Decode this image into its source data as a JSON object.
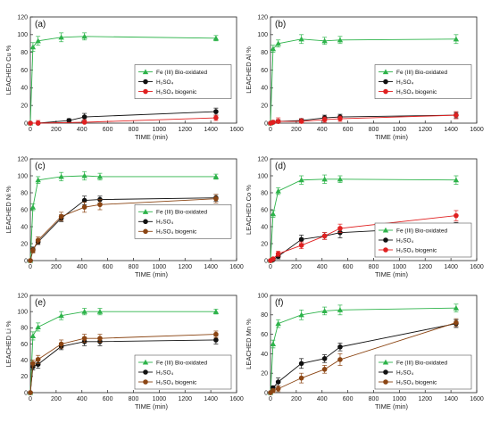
{
  "chart_data": [
    {
      "type": "line",
      "panel_label": "(a)",
      "xlabel": "TIME (min)",
      "ylabel": "LEACHED Cu %",
      "xlim": [
        0,
        1600
      ],
      "ylim": [
        0,
        120
      ],
      "xticks": [
        0,
        200,
        400,
        600,
        800,
        1000,
        1200,
        1400,
        1600
      ],
      "yticks": [
        0,
        20,
        40,
        60,
        80,
        100,
        120
      ],
      "legend_placement": "middle-right",
      "series": [
        {
          "name": "Fe (III) Bio-oxidated",
          "color": "#2db34a",
          "marker": "triangle",
          "x": [
            0,
            20,
            60,
            240,
            420,
            1440
          ],
          "y": [
            0,
            86,
            93,
            97,
            98,
            96
          ],
          "err": [
            0,
            5,
            5,
            5,
            4,
            3
          ]
        },
        {
          "name": "H₂SO₄",
          "color": "#111111",
          "marker": "circle",
          "x": [
            0,
            60,
            300,
            420,
            1440
          ],
          "y": [
            0,
            0,
            3,
            7,
            13
          ],
          "err": [
            0,
            0,
            2,
            4,
            4
          ]
        },
        {
          "name": "H₂SO₄ biogenic",
          "color": "#e02020",
          "marker": "circle",
          "x": [
            0,
            60,
            420,
            1440
          ],
          "y": [
            0,
            0,
            1,
            6
          ],
          "err": [
            0,
            3,
            3,
            3
          ]
        }
      ]
    },
    {
      "type": "line",
      "panel_label": "(b)",
      "xlabel": "TIME (min)",
      "ylabel": "LEACHED Al %",
      "xlim": [
        0,
        1600
      ],
      "ylim": [
        0,
        120
      ],
      "xticks": [
        0,
        200,
        400,
        600,
        800,
        1000,
        1200,
        1400,
        1600
      ],
      "yticks": [
        0,
        20,
        40,
        60,
        80,
        100,
        120
      ],
      "legend_placement": "middle-right",
      "series": [
        {
          "name": "Fe (III) Bio-oxidated",
          "color": "#2db34a",
          "marker": "triangle",
          "x": [
            0,
            20,
            60,
            240,
            420,
            540,
            1440
          ],
          "y": [
            0,
            84,
            90,
            95,
            93,
            94,
            95
          ],
          "err": [
            0,
            4,
            4,
            5,
            4,
            4,
            5
          ]
        },
        {
          "name": "H₂SO₄",
          "color": "#111111",
          "marker": "circle",
          "x": [
            0,
            20,
            60,
            240,
            420,
            540,
            1440
          ],
          "y": [
            0,
            1,
            2,
            3,
            6,
            7,
            9
          ],
          "err": [
            0,
            1,
            2,
            2,
            3,
            3,
            3
          ]
        },
        {
          "name": "H₂SO₄ biogenic",
          "color": "#e02020",
          "marker": "circle",
          "x": [
            0,
            20,
            60,
            240,
            420,
            540,
            1440
          ],
          "y": [
            0,
            1,
            2,
            2,
            4,
            5,
            9
          ],
          "err": [
            0,
            2,
            4,
            3,
            3,
            3,
            4
          ]
        }
      ]
    },
    {
      "type": "line",
      "panel_label": "(c)",
      "xlabel": "TIME (min)",
      "ylabel": "LEACHED Ni %",
      "xlim": [
        0,
        1600
      ],
      "ylim": [
        0,
        120
      ],
      "xticks": [
        0,
        200,
        400,
        600,
        800,
        1000,
        1200,
        1400,
        1600
      ],
      "yticks": [
        0,
        20,
        40,
        60,
        80,
        100,
        120
      ],
      "legend_placement": "middle-right",
      "series": [
        {
          "name": "Fe (III) Bio-oxidated",
          "color": "#2db34a",
          "marker": "triangle",
          "x": [
            0,
            20,
            60,
            240,
            420,
            540,
            1440
          ],
          "y": [
            0,
            63,
            95,
            99,
            100,
            99,
            99
          ],
          "err": [
            0,
            4,
            4,
            5,
            5,
            4,
            3
          ]
        },
        {
          "name": "H₂SO₄",
          "color": "#111111",
          "marker": "circle",
          "x": [
            0,
            20,
            60,
            240,
            420,
            540,
            1440
          ],
          "y": [
            0,
            13,
            22,
            50,
            71,
            72,
            74
          ],
          "err": [
            0,
            3,
            3,
            4,
            5,
            4,
            4
          ]
        },
        {
          "name": "H₂SO₄ biogenic",
          "color": "#8b4513",
          "marker": "circle",
          "x": [
            0,
            20,
            60,
            240,
            420,
            540,
            1440
          ],
          "y": [
            0,
            12,
            24,
            52,
            63,
            66,
            73
          ],
          "err": [
            0,
            3,
            4,
            5,
            6,
            6,
            5
          ]
        }
      ]
    },
    {
      "type": "line",
      "panel_label": "(d)",
      "xlabel": "TIME (min)",
      "ylabel": "LEACHED Co %",
      "xlim": [
        0,
        1600
      ],
      "ylim": [
        0,
        120
      ],
      "xticks": [
        0,
        200,
        400,
        600,
        800,
        1000,
        1200,
        1400,
        1600
      ],
      "yticks": [
        0,
        20,
        40,
        60,
        80,
        100,
        120
      ],
      "legend_placement": "bottom-right",
      "series": [
        {
          "name": "Fe (III) Bio-oxidated",
          "color": "#2db34a",
          "marker": "triangle",
          "x": [
            0,
            20,
            60,
            240,
            420,
            540,
            1440
          ],
          "y": [
            0,
            55,
            82,
            95,
            96,
            96,
            95
          ],
          "err": [
            0,
            4,
            4,
            5,
            5,
            4,
            5
          ]
        },
        {
          "name": "H₂SO₄",
          "color": "#111111",
          "marker": "circle",
          "x": [
            0,
            20,
            60,
            240,
            420,
            540,
            1440
          ],
          "y": [
            0,
            1,
            5,
            25,
            29,
            33,
            40
          ],
          "err": [
            0,
            1,
            3,
            5,
            4,
            6,
            5
          ]
        },
        {
          "name": "H₂SO₄ biogenic",
          "color": "#e02020",
          "marker": "circle",
          "x": [
            0,
            20,
            60,
            240,
            420,
            540,
            1440
          ],
          "y": [
            0,
            2,
            8,
            18,
            29,
            38,
            53
          ],
          "err": [
            0,
            1,
            3,
            4,
            4,
            5,
            6
          ]
        }
      ]
    },
    {
      "type": "line",
      "panel_label": "(e)",
      "xlabel": "TIME (min)",
      "ylabel": "LEACHED Li %",
      "xlim": [
        0,
        1600
      ],
      "ylim": [
        0,
        120
      ],
      "xticks": [
        0,
        200,
        400,
        600,
        800,
        1000,
        1200,
        1400,
        1600
      ],
      "yticks": [
        0,
        20,
        40,
        60,
        80,
        100,
        120
      ],
      "legend_placement": "bottom-right",
      "series": [
        {
          "name": "Fe (III) Bio-oxidated",
          "color": "#2db34a",
          "marker": "triangle",
          "x": [
            0,
            20,
            60,
            240,
            420,
            540,
            1440
          ],
          "y": [
            0,
            70,
            81,
            95,
            100,
            100,
            100
          ],
          "err": [
            0,
            5,
            5,
            5,
            4,
            4,
            3
          ]
        },
        {
          "name": "H₂SO₄",
          "color": "#111111",
          "marker": "circle",
          "x": [
            0,
            20,
            60,
            240,
            420,
            540,
            1440
          ],
          "y": [
            0,
            32,
            35,
            57,
            63,
            63,
            65
          ],
          "err": [
            0,
            4,
            5,
            4,
            5,
            5,
            5
          ]
        },
        {
          "name": "H₂SO₄ biogenic",
          "color": "#8b4513",
          "marker": "circle",
          "x": [
            0,
            20,
            60,
            240,
            420,
            540,
            1440
          ],
          "y": [
            0,
            36,
            41,
            60,
            67,
            67,
            72
          ],
          "err": [
            0,
            4,
            5,
            5,
            5,
            5,
            4
          ]
        }
      ]
    },
    {
      "type": "line",
      "panel_label": "(f)",
      "xlabel": "TIME (min)",
      "ylabel": "LEACHED Mn %",
      "xlim": [
        0,
        1600
      ],
      "ylim": [
        0,
        100
      ],
      "xticks": [
        0,
        200,
        400,
        600,
        800,
        1000,
        1200,
        1400,
        1600
      ],
      "yticks": [
        0,
        20,
        40,
        60,
        80,
        100
      ],
      "legend_placement": "bottom-right",
      "series": [
        {
          "name": "Fe (III) Bio-oxidated",
          "color": "#2db34a",
          "marker": "triangle",
          "x": [
            0,
            20,
            60,
            240,
            420,
            540,
            1440
          ],
          "y": [
            0,
            50,
            71,
            80,
            84,
            85,
            87
          ],
          "err": [
            0,
            4,
            4,
            5,
            4,
            5,
            4
          ]
        },
        {
          "name": "H₂SO₄",
          "color": "#111111",
          "marker": "circle",
          "x": [
            0,
            20,
            60,
            240,
            420,
            540,
            1440
          ],
          "y": [
            0,
            5,
            11,
            30,
            35,
            47,
            71
          ],
          "err": [
            0,
            2,
            4,
            5,
            4,
            4,
            4
          ]
        },
        {
          "name": "H₂SO₄ biogenic",
          "color": "#8b4513",
          "marker": "circle",
          "x": [
            0,
            20,
            60,
            240,
            420,
            540,
            1440
          ],
          "y": [
            0,
            2,
            4,
            15,
            24,
            34,
            72
          ],
          "err": [
            0,
            2,
            3,
            5,
            4,
            6,
            4
          ]
        }
      ]
    }
  ]
}
